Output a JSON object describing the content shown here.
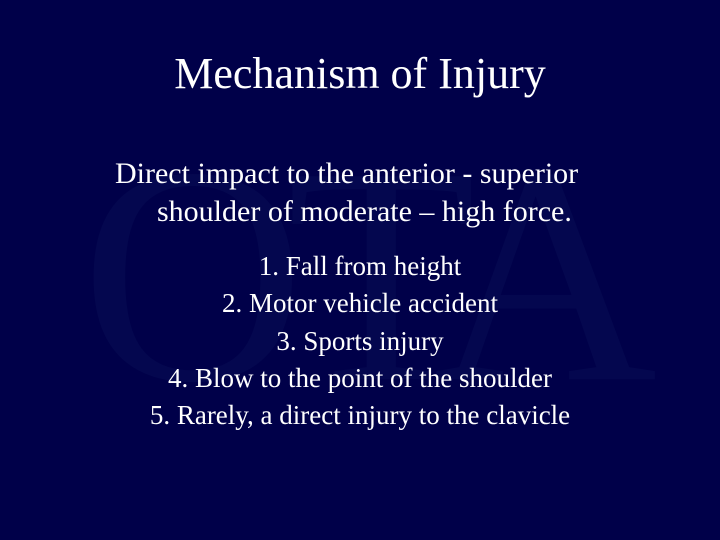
{
  "background_color": "#000049",
  "watermark_color": "#04074f",
  "text_color": "#ffffff",
  "font_family": "Times New Roman",
  "watermark_text": "OTA",
  "title": "Mechanism of Injury",
  "subtitle_line1": "Direct impact to the anterior - superior",
  "subtitle_line2": "shoulder of moderate – high force.",
  "items": [
    "1.   Fall from height",
    "2.   Motor vehicle accident",
    "3.   Sports injury",
    "4.   Blow to the point of the shoulder",
    "5.   Rarely, a direct injury to the clavicle"
  ],
  "title_fontsize": 44,
  "subtitle_fontsize": 30,
  "list_fontsize": 27
}
